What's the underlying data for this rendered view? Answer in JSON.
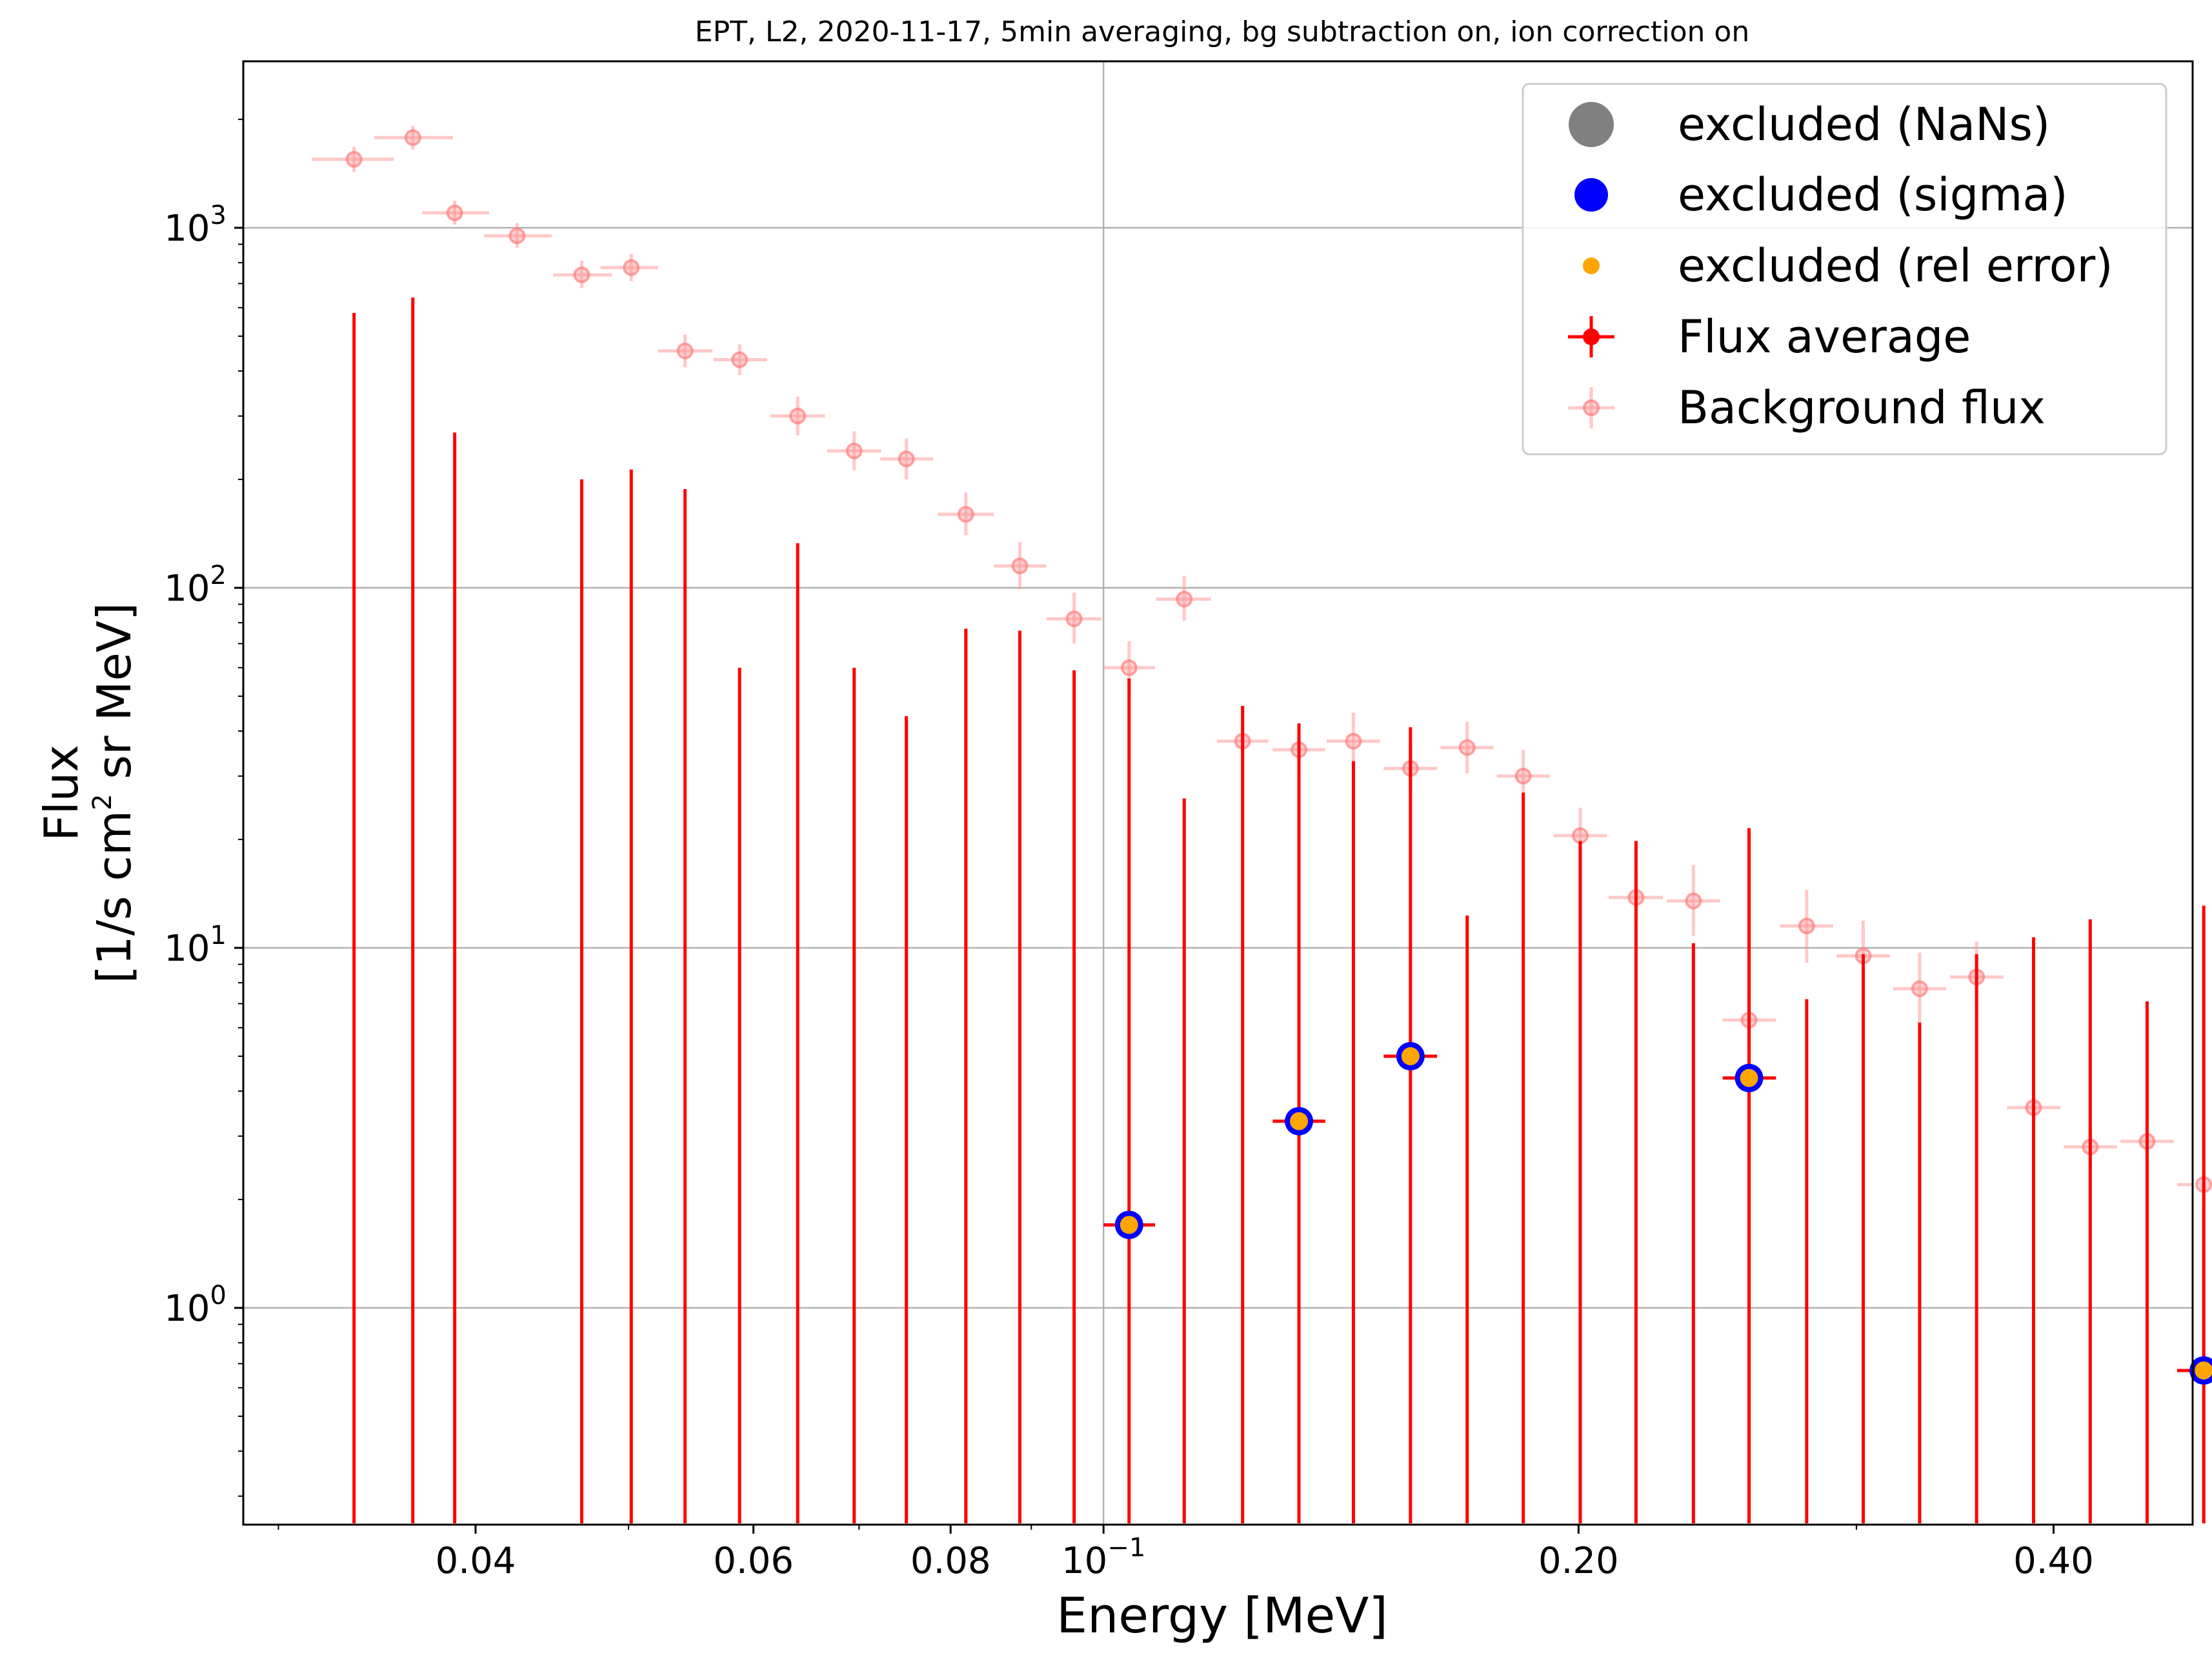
{
  "chart_data": {
    "type": "scatter",
    "title": "EPT, L2, 2020-11-17, 5min averaging, bg subtraction on, ion correction on",
    "xlabel": "Energy [MeV]",
    "ylabel_line1": "Flux",
    "ylabel_line2_pre": "[1/s cm",
    "ylabel_line2_sup": "2",
    "ylabel_line2_post": " sr MeV]",
    "x_scale": "log",
    "y_scale": "log",
    "xlim": [
      0.0285,
      0.49
    ],
    "ylim": [
      0.25,
      2900
    ],
    "grid": true,
    "legend_position": "top-right",
    "colors": {
      "flux": "#ff0000",
      "background": "#ff9a9a",
      "sigma": "#0000ff",
      "rel_error": "#ffa500",
      "nans": "#808080"
    },
    "x_ticks": [
      {
        "value": 0.04,
        "label": "0.04"
      },
      {
        "value": 0.06,
        "label": "0.06"
      },
      {
        "value": 0.08,
        "label": "0.08"
      },
      {
        "value": 0.1,
        "label": "10",
        "exp": "−1"
      },
      {
        "value": 0.2,
        "label": "0.20"
      },
      {
        "value": 0.4,
        "label": "0.40"
      }
    ],
    "y_ticks": [
      {
        "value": 1,
        "label": "10",
        "exp": "0"
      },
      {
        "value": 10,
        "label": "10",
        "exp": "1"
      },
      {
        "value": 100,
        "label": "10",
        "exp": "2"
      },
      {
        "value": 1000,
        "label": "10",
        "exp": "3"
      }
    ],
    "legend": [
      {
        "label": "excluded (NaNs)",
        "marker": "big-circle",
        "color": "#808080"
      },
      {
        "label": "excluded (sigma)",
        "marker": "circle",
        "color": "#0000ff"
      },
      {
        "label": "excluded (rel error)",
        "marker": "small-circle",
        "color": "#ffa500"
      },
      {
        "label": "Flux average",
        "marker": "errorbar",
        "color": "#ff0000"
      },
      {
        "label": "Background flux",
        "marker": "errorbar-faded",
        "color": "#ff9a9a"
      }
    ],
    "series": [
      {
        "name": "Background flux",
        "points": [
          {
            "x": 0.0335,
            "y": 1550,
            "xerr": [
              0.0315,
              0.0355
            ],
            "yerr": [
              1430,
              1680
            ]
          },
          {
            "x": 0.0365,
            "y": 1780,
            "xerr": [
              0.0345,
              0.0387
            ],
            "yerr": [
              1650,
              1920
            ]
          },
          {
            "x": 0.0388,
            "y": 1100,
            "xerr": [
              0.037,
              0.0408
            ],
            "yerr": [
              1020,
              1190
            ]
          },
          {
            "x": 0.0425,
            "y": 950,
            "xerr": [
              0.0405,
              0.0447
            ],
            "yerr": [
              880,
              1030
            ]
          },
          {
            "x": 0.0467,
            "y": 740,
            "xerr": [
              0.0448,
              0.0488
            ],
            "yerr": [
              680,
              810
            ]
          },
          {
            "x": 0.0502,
            "y": 775,
            "xerr": [
              0.048,
              0.0522
            ],
            "yerr": [
              710,
              845
            ]
          },
          {
            "x": 0.0543,
            "y": 455,
            "xerr": [
              0.0522,
              0.0565
            ],
            "yerr": [
              410,
              505
            ]
          },
          {
            "x": 0.0588,
            "y": 430,
            "xerr": [
              0.0566,
              0.0612
            ],
            "yerr": [
              390,
              475
            ]
          },
          {
            "x": 0.064,
            "y": 300,
            "xerr": [
              0.0615,
              0.0666
            ],
            "yerr": [
              265,
              340
            ]
          },
          {
            "x": 0.0695,
            "y": 240,
            "xerr": [
              0.0668,
              0.0723
            ],
            "yerr": [
              212,
              272
            ]
          },
          {
            "x": 0.075,
            "y": 228,
            "xerr": [
              0.0722,
              0.078
            ],
            "yerr": [
              200,
              260
            ]
          },
          {
            "x": 0.0818,
            "y": 160,
            "xerr": [
              0.0785,
              0.0852
            ],
            "yerr": [
              140,
              184
            ]
          },
          {
            "x": 0.0885,
            "y": 115,
            "xerr": [
              0.0852,
              0.092
            ],
            "yerr": [
              99,
              134
            ]
          },
          {
            "x": 0.0958,
            "y": 82,
            "xerr": [
              0.092,
              0.0997
            ],
            "yerr": [
              70,
              97
            ]
          },
          {
            "x": 0.1038,
            "y": 60,
            "xerr": [
              0.1,
              0.1078
            ],
            "yerr": [
              51,
              71
            ]
          },
          {
            "x": 0.1125,
            "y": 93,
            "xerr": [
              0.108,
              0.117
            ],
            "yerr": [
              81,
              108
            ]
          },
          {
            "x": 0.1225,
            "y": 37.5,
            "xerr": [
              0.118,
              0.1272
            ],
            "yerr": [
              32,
              44
            ]
          },
          {
            "x": 0.133,
            "y": 35.5,
            "xerr": [
              0.128,
              0.1382
            ],
            "yerr": [
              30,
              42
            ]
          },
          {
            "x": 0.144,
            "y": 37.5,
            "xerr": [
              0.1385,
              0.1497
            ],
            "yerr": [
              32,
              45
            ]
          },
          {
            "x": 0.1565,
            "y": 31.5,
            "xerr": [
              0.1505,
              0.1627
            ],
            "yerr": [
              27,
              37
            ]
          },
          {
            "x": 0.17,
            "y": 36,
            "xerr": [
              0.1635,
              0.1767
            ],
            "yerr": [
              30.5,
              42.5
            ]
          },
          {
            "x": 0.1845,
            "y": 30,
            "xerr": [
              0.1775,
              0.1918
            ],
            "yerr": [
              25.5,
              35.5
            ]
          },
          {
            "x": 0.2005,
            "y": 20.5,
            "xerr": [
              0.1928,
              0.2085
            ],
            "yerr": [
              17.2,
              24.5
            ]
          },
          {
            "x": 0.2175,
            "y": 13.8,
            "xerr": [
              0.209,
              0.2262
            ],
            "yerr": [
              11.6,
              16.5
            ]
          },
          {
            "x": 0.2365,
            "y": 13.5,
            "xerr": [
              0.2275,
              0.2458
            ],
            "yerr": [
              10.8,
              17
            ]
          },
          {
            "x": 0.2565,
            "y": 6.3,
            "xerr": [
              0.2468,
              0.2668
            ],
            "yerr": [
              5.3,
              7.6
            ]
          },
          {
            "x": 0.279,
            "y": 11.5,
            "xerr": [
              0.2683,
              0.29
            ],
            "yerr": [
              9.1,
              14.5
            ]
          },
          {
            "x": 0.303,
            "y": 9.5,
            "xerr": [
              0.2915,
              0.315
            ],
            "yerr": [
              7.6,
              11.9
            ]
          },
          {
            "x": 0.329,
            "y": 7.7,
            "xerr": [
              0.3165,
              0.342
            ],
            "yerr": [
              6.1,
              9.7
            ]
          },
          {
            "x": 0.3575,
            "y": 8.3,
            "xerr": [
              0.344,
              0.3717
            ],
            "yerr": [
              6.7,
              10.4
            ]
          },
          {
            "x": 0.3885,
            "y": 3.6,
            "xerr": [
              0.3737,
              0.404
            ],
            "yerr": [
              3.2,
              4.05
            ]
          },
          {
            "x": 0.422,
            "y": 2.8,
            "xerr": [
              0.406,
              0.4388
            ],
            "yerr": [
              2.5,
              3.15
            ]
          },
          {
            "x": 0.4585,
            "y": 2.9,
            "xerr": [
              0.441,
              0.4768
            ],
            "yerr": [
              2.55,
              3.3
            ]
          },
          {
            "x": 0.498,
            "y": 2.2,
            "xerr": [
              0.479,
              0.518
            ],
            "yerr": [
              1.95,
              2.5
            ]
          }
        ]
      },
      {
        "name": "Flux average",
        "errorbars": [
          {
            "x": 0.0335,
            "upper": 580
          },
          {
            "x": 0.0365,
            "upper": 640
          },
          {
            "x": 0.0388,
            "upper": 270
          },
          {
            "x": 0.0467,
            "upper": 200
          },
          {
            "x": 0.0502,
            "upper": 213
          },
          {
            "x": 0.0543,
            "upper": 188
          },
          {
            "x": 0.0588,
            "upper": 60
          },
          {
            "x": 0.064,
            "upper": 133
          },
          {
            "x": 0.0695,
            "upper": 60
          },
          {
            "x": 0.075,
            "upper": 44
          },
          {
            "x": 0.0818,
            "upper": 77
          },
          {
            "x": 0.0885,
            "upper": 76
          },
          {
            "x": 0.0958,
            "upper": 59
          },
          {
            "x": 0.1038,
            "upper": 56
          },
          {
            "x": 0.1125,
            "upper": 26
          },
          {
            "x": 0.1225,
            "upper": 47
          },
          {
            "x": 0.133,
            "upper": 42
          },
          {
            "x": 0.144,
            "upper": 33
          },
          {
            "x": 0.1565,
            "upper": 41
          },
          {
            "x": 0.17,
            "upper": 12.3
          },
          {
            "x": 0.1845,
            "upper": 27
          },
          {
            "x": 0.2005,
            "upper": 19.8
          },
          {
            "x": 0.2175,
            "upper": 19.8
          },
          {
            "x": 0.2365,
            "upper": 10.3
          },
          {
            "x": 0.2565,
            "upper": 21.5
          },
          {
            "x": 0.279,
            "upper": 7.2
          },
          {
            "x": 0.303,
            "upper": 9.6
          },
          {
            "x": 0.329,
            "upper": 6.2
          },
          {
            "x": 0.3575,
            "upper": 9.6
          },
          {
            "x": 0.3885,
            "upper": 10.7
          },
          {
            "x": 0.422,
            "upper": 12
          },
          {
            "x": 0.4585,
            "upper": 7.1
          },
          {
            "x": 0.498,
            "upper": 13.1
          }
        ]
      },
      {
        "name": "excluded (sigma)",
        "points": [
          {
            "x": 0.1038,
            "y": 1.7,
            "xerr": [
              0.1,
              0.1078
            ]
          },
          {
            "x": 0.133,
            "y": 3.3,
            "xerr": [
              0.128,
              0.1382
            ]
          },
          {
            "x": 0.1565,
            "y": 5.0,
            "xerr": [
              0.1505,
              0.1627
            ]
          },
          {
            "x": 0.2565,
            "y": 4.35,
            "xerr": [
              0.2468,
              0.2668
            ]
          },
          {
            "x": 0.498,
            "y": 0.67,
            "xerr": [
              0.479,
              0.518
            ]
          }
        ]
      }
    ]
  }
}
